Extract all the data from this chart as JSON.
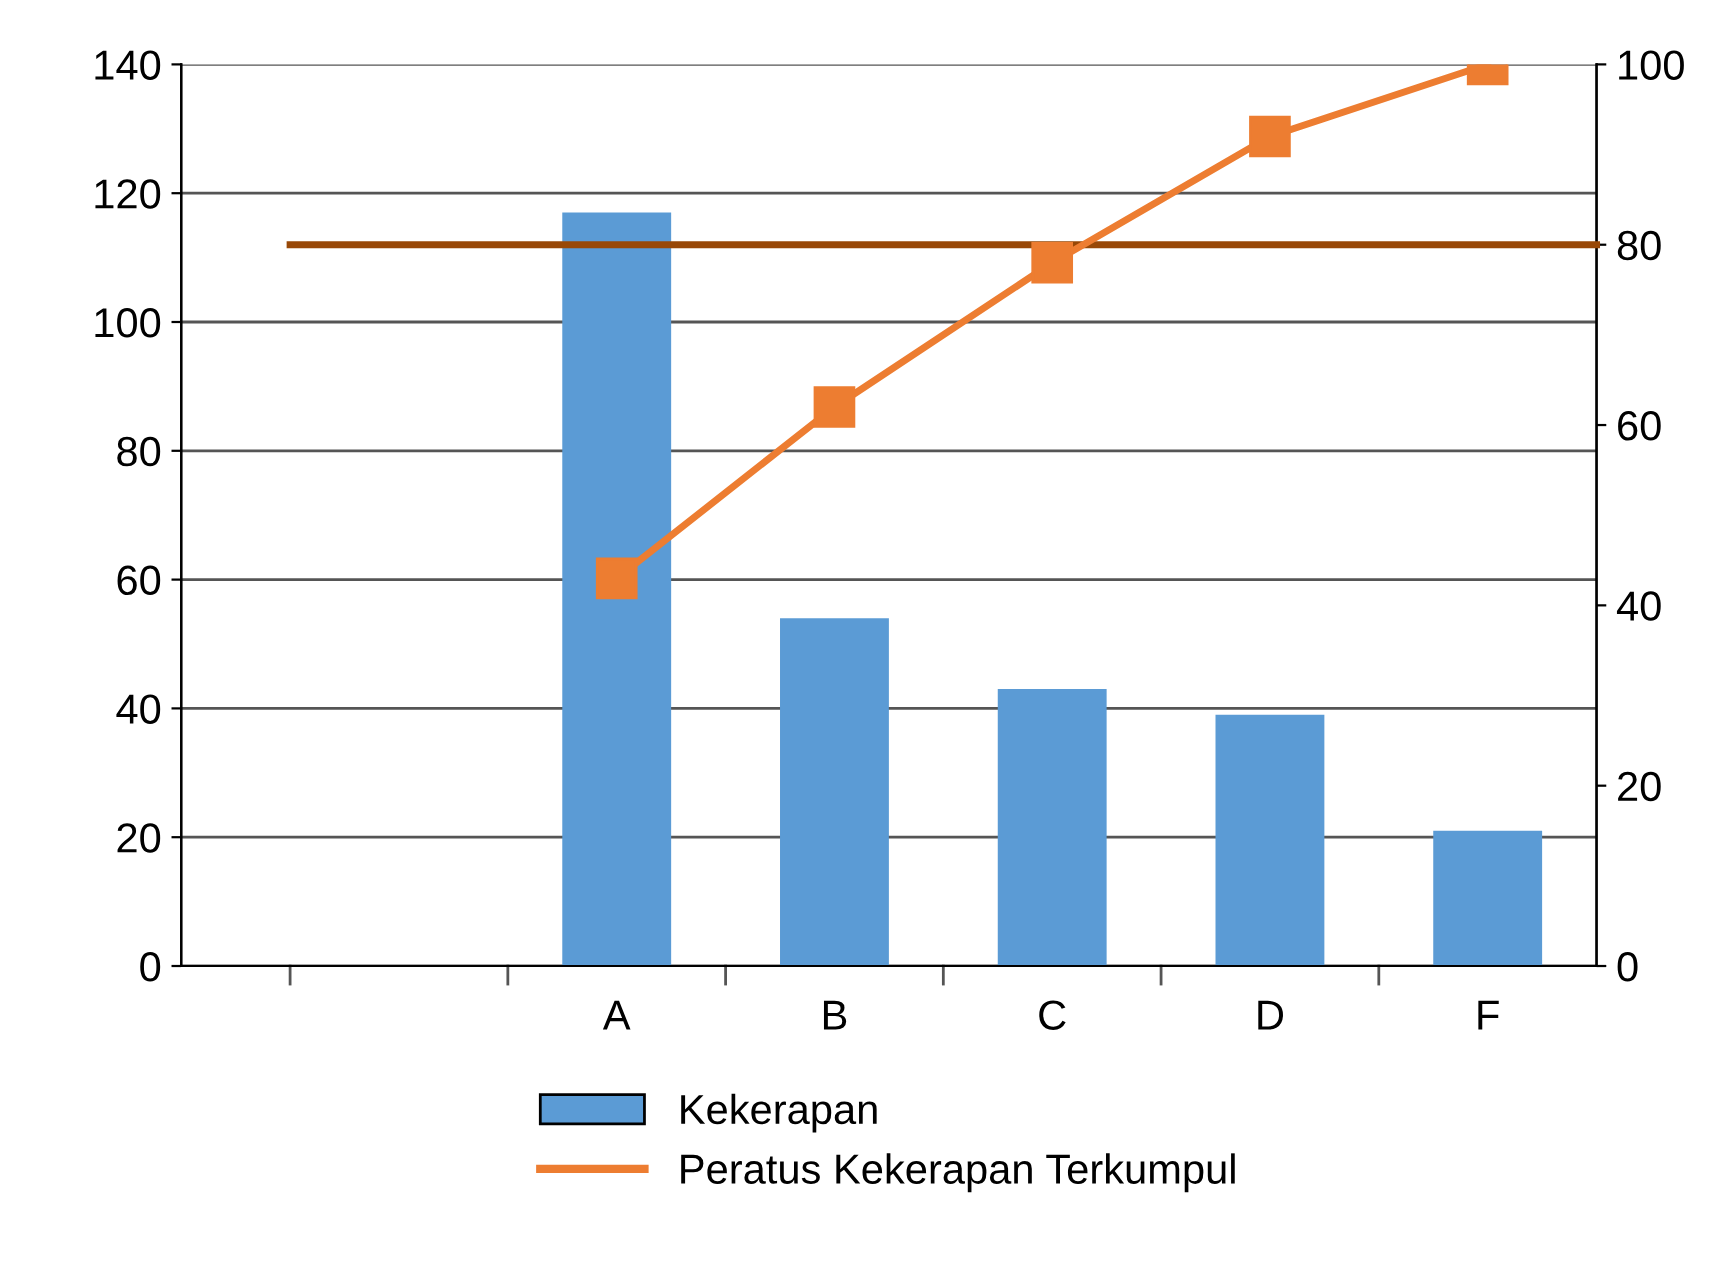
{
  "chart_data": {
    "type": "bar",
    "categories": [
      null,
      "A",
      "B",
      "C",
      "D",
      "F"
    ],
    "series": [
      {
        "name": "Kekerapan",
        "color": "#5b9bd5",
        "values": [
          null,
          117,
          54,
          43,
          39,
          21
        ]
      },
      {
        "name": "Peratus Kekerapan Terkumpul",
        "type": "line",
        "axis": "y2",
        "color": "#ed7d31",
        "marker": "square",
        "values": [
          null,
          43,
          62,
          78,
          92,
          100
        ]
      }
    ],
    "ylim": [
      0,
      140
    ],
    "yticks": [
      0,
      20,
      40,
      60,
      80,
      100,
      120,
      140
    ],
    "y2lim": [
      0,
      100
    ],
    "y2ticks": [
      0,
      20,
      40,
      60,
      80,
      100
    ],
    "ref_lines": [
      {
        "axis": "y2",
        "value": 80,
        "color": "#984807"
      }
    ],
    "grid": "y",
    "legend": "bottom"
  }
}
